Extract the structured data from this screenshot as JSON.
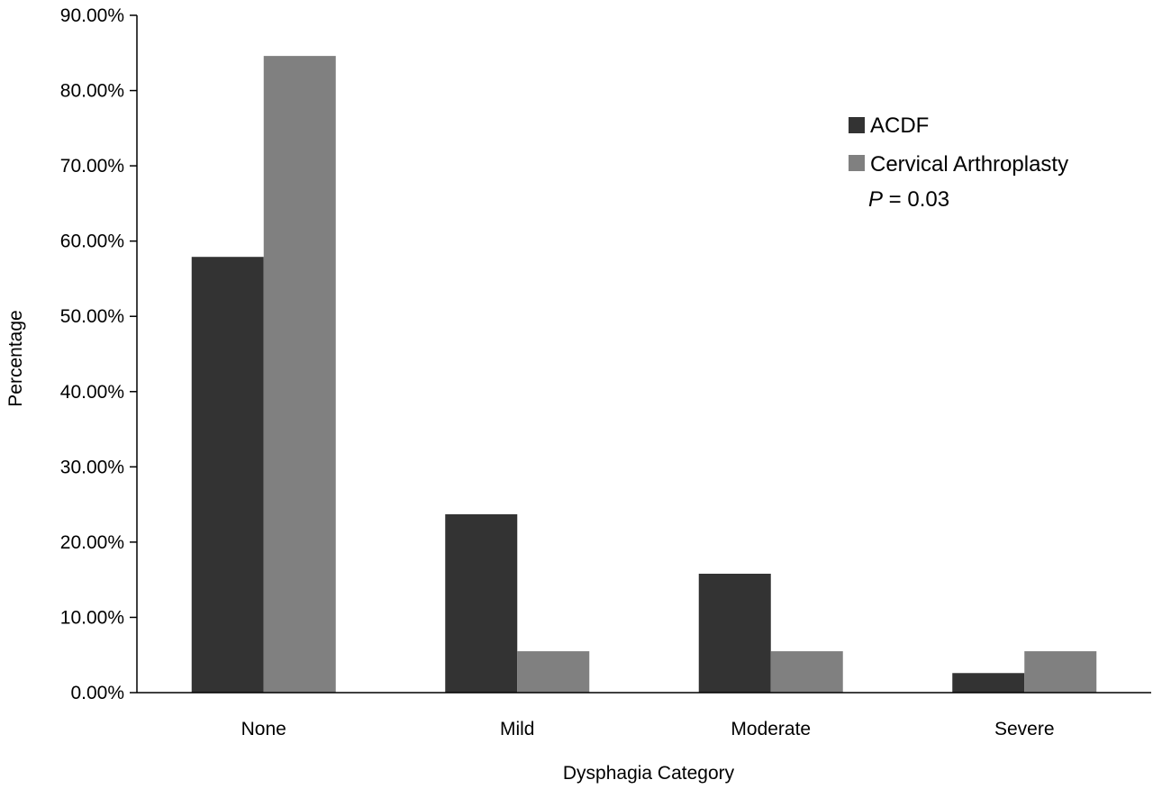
{
  "chart_data": {
    "type": "bar",
    "title": "",
    "xlabel": "Dysphagia Category",
    "ylabel": "Percentage",
    "categories": [
      "None",
      "Mild",
      "Moderate",
      "Severe"
    ],
    "ylim": [
      0,
      90
    ],
    "yticks": [
      0,
      10,
      20,
      30,
      40,
      50,
      60,
      70,
      80,
      90
    ],
    "ytick_labels": [
      "0.00%",
      "10.00%",
      "20.00%",
      "30.00%",
      "40.00%",
      "50.00%",
      "60.00%",
      "70.00%",
      "80.00%",
      "90.00%"
    ],
    "series": [
      {
        "name": "ACDF",
        "values": [
          57.9,
          23.7,
          15.8,
          2.6
        ],
        "color": "#333333"
      },
      {
        "name": "Cervical Arthroplasty",
        "values": [
          84.6,
          5.5,
          5.5,
          5.5
        ],
        "color": "#808080"
      }
    ],
    "annotation": {
      "p_symbol": "P",
      "p_rest": " = 0.03"
    },
    "legend_position": "top-right",
    "grid": false
  }
}
